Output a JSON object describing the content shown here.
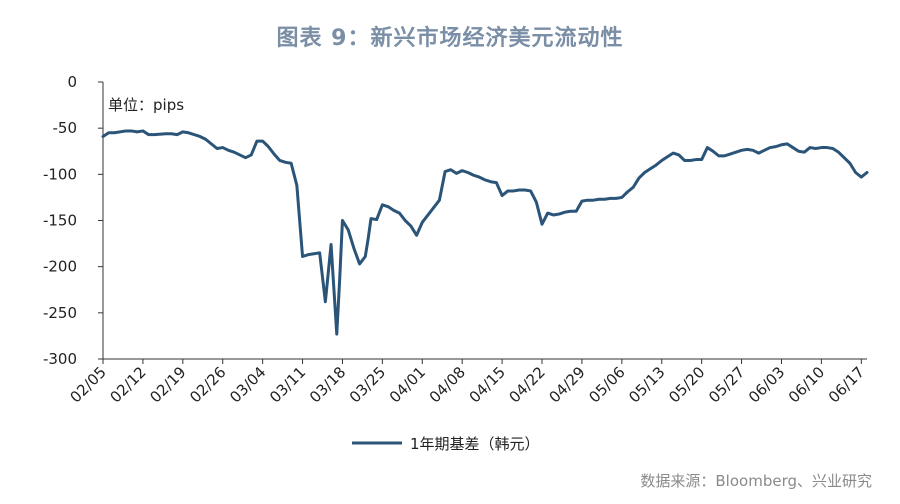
{
  "title": "图表 9：新兴市场经济美元流动性",
  "source": "数据来源：Bloomberg、兴业研究",
  "colors": {
    "series": "#2a5478",
    "title": "#7a8ea6",
    "axis": "#333333"
  },
  "chart_data": {
    "type": "line",
    "unit_label": "单位：pips",
    "ylim": [
      -300,
      0
    ],
    "y_ticks": [
      0,
      -50,
      -100,
      -150,
      -200,
      -250,
      -300
    ],
    "x_ticks": [
      "02/05",
      "02/12",
      "02/19",
      "02/26",
      "03/04",
      "03/11",
      "03/18",
      "03/25",
      "04/01",
      "04/08",
      "04/15",
      "04/22",
      "04/29",
      "05/06",
      "05/13",
      "05/20",
      "05/27",
      "06/03",
      "06/10",
      "06/17"
    ],
    "grid": false,
    "legend_position": "bottom",
    "series": [
      {
        "name": "1年期基差（韩元）",
        "x": [
          0,
          1,
          2,
          4,
          5,
          6,
          7,
          8,
          9,
          11,
          12,
          13,
          14,
          15,
          16,
          17,
          18,
          19,
          20,
          21,
          22,
          23,
          24,
          25,
          26,
          27,
          28,
          29,
          30,
          31,
          32,
          33,
          34,
          35,
          36,
          37,
          38,
          39,
          40,
          41,
          41.5,
          42,
          43,
          44,
          45,
          46,
          46.5,
          47,
          48,
          49,
          50,
          51,
          52,
          53,
          54,
          55,
          56,
          57,
          58,
          59,
          60,
          61,
          62,
          63,
          64,
          65,
          66,
          67,
          68,
          69,
          70,
          71,
          72,
          73,
          74,
          75,
          76,
          77,
          78,
          79,
          80,
          81,
          82,
          83,
          84,
          85,
          86,
          87,
          88,
          89,
          90,
          91,
          92,
          93,
          94,
          95,
          96,
          97,
          98,
          99,
          100,
          101,
          102,
          103,
          104,
          105,
          106,
          107,
          108,
          109,
          110,
          111,
          112,
          113,
          114,
          115,
          116,
          117,
          118,
          119,
          120,
          121,
          122,
          123,
          124,
          125,
          126,
          127,
          128,
          129,
          130,
          131,
          132,
          133,
          134
        ],
        "values": [
          -59,
          -55,
          -55,
          -53,
          -53,
          -54,
          -53,
          -57,
          -57,
          -56,
          -56,
          -57,
          -54,
          -55,
          -57,
          -59,
          -62,
          -67,
          -72,
          -71,
          -74,
          -76,
          -79,
          -82,
          -79,
          -64,
          -64,
          -70,
          -78,
          -85,
          -87,
          -88,
          -112,
          -189,
          -187,
          -186,
          -185,
          -238,
          -176,
          -273,
          -215,
          -150,
          -160,
          -180,
          -197,
          -189,
          -170,
          -148,
          -149,
          -133,
          -135,
          -139,
          -142,
          -150,
          -156,
          -166,
          -152,
          -144,
          -136,
          -128,
          -97,
          -95,
          -99,
          -96,
          -98,
          -101,
          -103,
          -106,
          -108,
          -109,
          -123,
          -118,
          -118,
          -117,
          -117,
          -118,
          -130,
          -154,
          -142,
          -144,
          -143,
          -141,
          -140,
          -140,
          -129,
          -128,
          -128,
          -127,
          -127,
          -126,
          -126,
          -125,
          -119,
          -114,
          -104,
          -98,
          -94,
          -90,
          -85,
          -81,
          -77,
          -79,
          -85,
          -85,
          -84,
          -84,
          -71,
          -75,
          -80,
          -80,
          -78,
          -76,
          -74,
          -73,
          -74,
          -77,
          -74,
          -71,
          -70,
          -68,
          -67,
          -71,
          -75,
          -76,
          -71,
          -72,
          -71,
          -71,
          -72,
          -76,
          -82,
          -88,
          -98,
          -103,
          -98
        ]
      }
    ]
  }
}
